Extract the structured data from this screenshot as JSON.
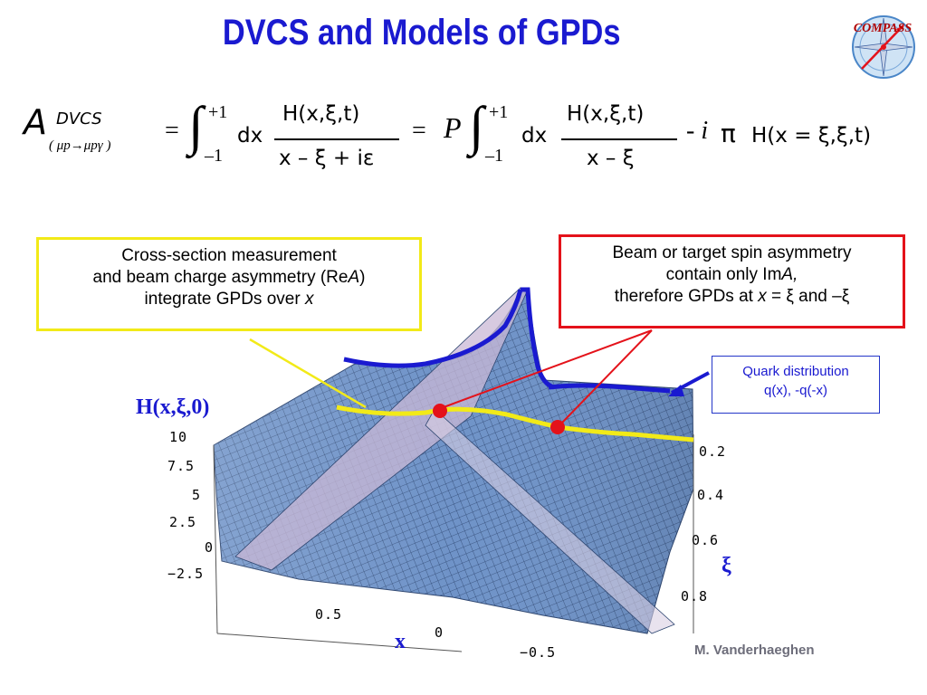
{
  "title": "DVCS and Models of GPDs",
  "logo": {
    "text": "COMPASS"
  },
  "formula": {
    "amp_symbol": "A",
    "amp_super": "DVCS",
    "amp_sub": "( μp→μpγ )",
    "eq1": "=",
    "int_upper": "+1",
    "int_lower": "–1",
    "dx": "dx",
    "num1": "H(x,ξ,t)",
    "den1": "x – ξ + iε",
    "eq2": "=",
    "pv": "P",
    "num2": "H(x,ξ,t)",
    "den2": "x – ξ",
    "minus_i": "- i",
    "pi": "π",
    "tail": "H(x = ξ,ξ,t)"
  },
  "box_cross_section": {
    "line1": "Cross-section measurement",
    "line2_pre": "and beam charge asymmetry (Re",
    "line2_ital": "A",
    "line2_post": ")",
    "line3_pre": "integrate GPDs over ",
    "line3_ital": "x"
  },
  "box_spin": {
    "line1": "Beam or target spin asymmetry",
    "line2_pre": "contain only Im",
    "line2_ital": "A,",
    "line3_pre": "therefore GPDs at ",
    "line3_ital": "x",
    "line3_mid": " = ξ and –ξ"
  },
  "box_quark": {
    "line1": "Quark distribution",
    "line2": "q(x), -q(-x)"
  },
  "plot": {
    "zlabel": "H(x,ξ,0)",
    "xlabel": "x",
    "xilabel": "ξ",
    "z_ticks": [
      "10",
      "7.5",
      "5",
      "2.5",
      "0",
      "−2.5"
    ],
    "x_ticks": [
      "0.5",
      "0",
      "−0.5"
    ],
    "xi_ticks": [
      "0.2",
      "0.4",
      "0.6",
      "0.8"
    ]
  },
  "author": "M. Vanderhaeghen",
  "colors": {
    "title": "#1a1ad0",
    "yellow": "#f2ea18",
    "red": "#e4121a",
    "blue": "#1a1ad0",
    "surface": "#6f93c8"
  }
}
